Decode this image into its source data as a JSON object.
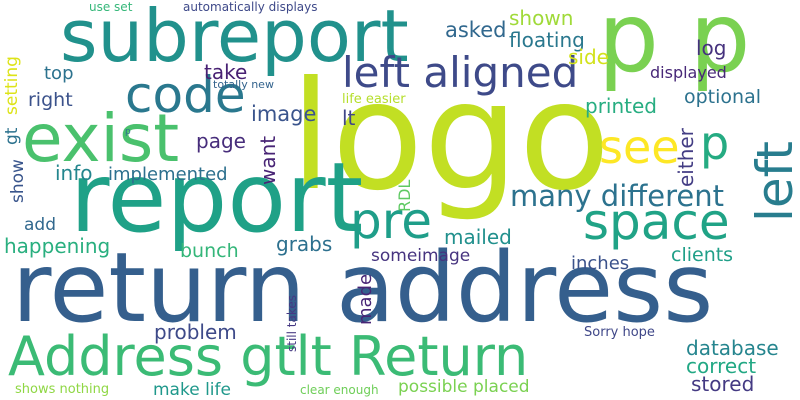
{
  "words": [
    {
      "key": "logo",
      "text": "logo",
      "color": "#c2df23"
    },
    {
      "key": "return_address",
      "text": "return address",
      "color": "#355f8d"
    },
    {
      "key": "report",
      "text": "report",
      "color": "#1fa187"
    },
    {
      "key": "subreport",
      "text": "subreport",
      "color": "#21918c"
    },
    {
      "key": "p_p",
      "text": "p p",
      "color": "#7ad151"
    },
    {
      "key": "address_gtlt_return",
      "text": "Address gtlt Return",
      "color": "#3bbb75"
    },
    {
      "key": "exist",
      "text": "exist",
      "color": "#4ac16d"
    },
    {
      "key": "left_aligned",
      "text": "left aligned",
      "color": "#3e4a89"
    },
    {
      "key": "code",
      "text": "code",
      "color": "#2a788e"
    },
    {
      "key": "space",
      "text": "space",
      "color": "#20a386"
    },
    {
      "key": "left",
      "text": "left",
      "color": "#287d8e"
    },
    {
      "key": "see",
      "text": "see",
      "color": "#fde725"
    },
    {
      "key": "p_small",
      "text": "p",
      "color": "#25ab82"
    },
    {
      "key": "pre",
      "text": "pre",
      "color": "#1f9e89"
    },
    {
      "key": "many_different",
      "text": "many different",
      "color": "#2c728e"
    },
    {
      "key": "shown",
      "text": "shown",
      "color": "#a0da39"
    },
    {
      "key": "asked",
      "text": "asked",
      "color": "#31688e"
    },
    {
      "key": "floating",
      "text": "floating",
      "color": "#2a788e"
    },
    {
      "key": "side",
      "text": "side",
      "color": "#d2e21b"
    },
    {
      "key": "log",
      "text": "log",
      "color": "#46327e"
    },
    {
      "key": "displayed",
      "text": "displayed",
      "color": "#482878"
    },
    {
      "key": "optional",
      "text": "optional",
      "color": "#2c728e"
    },
    {
      "key": "printed",
      "text": "printed",
      "color": "#27ad81"
    },
    {
      "key": "image",
      "text": "image",
      "color": "#3a548c"
    },
    {
      "key": "lt",
      "text": "lt",
      "color": "#404688"
    },
    {
      "key": "page",
      "text": "page",
      "color": "#472d7b"
    },
    {
      "key": "top",
      "text": "top",
      "color": "#2c728e"
    },
    {
      "key": "take",
      "text": "take",
      "color": "#482173"
    },
    {
      "key": "right",
      "text": "right",
      "color": "#3b528b"
    },
    {
      "key": "setting",
      "text": "setting",
      "color": "#dde318"
    },
    {
      "key": "gt",
      "text": "gt",
      "color": "#2c728e"
    },
    {
      "key": "show",
      "text": "show",
      "color": "#39558c"
    },
    {
      "key": "info",
      "text": "info",
      "color": "#24868e"
    },
    {
      "key": "implemented",
      "text": "implemented",
      "color": "#2d708e"
    },
    {
      "key": "want",
      "text": "want",
      "color": "#482475"
    },
    {
      "key": "either",
      "text": "either",
      "color": "#433d84"
    },
    {
      "key": "rdl",
      "text": "RDL",
      "color": "#5ec962"
    },
    {
      "key": "add",
      "text": "add",
      "color": "#31688e"
    },
    {
      "key": "bunch",
      "text": "bunch",
      "color": "#34b679"
    },
    {
      "key": "grabs",
      "text": "grabs",
      "color": "#2d708e"
    },
    {
      "key": "mailed",
      "text": "mailed",
      "color": "#21908d"
    },
    {
      "key": "happening",
      "text": "happening",
      "color": "#29af7f"
    },
    {
      "key": "someimage",
      "text": "someimage",
      "color": "#46337f"
    },
    {
      "key": "inches",
      "text": "inches",
      "color": "#3b528b"
    },
    {
      "key": "clients",
      "text": "clients",
      "color": "#1f9f88"
    },
    {
      "key": "problem",
      "text": "problem",
      "color": "#3e4a89"
    },
    {
      "key": "made",
      "text": "made",
      "color": "#482576"
    },
    {
      "key": "still_takes",
      "text": "still takes",
      "color": "#453882"
    },
    {
      "key": "database",
      "text": "database",
      "color": "#25858e"
    },
    {
      "key": "correct",
      "text": "correct",
      "color": "#22a884"
    },
    {
      "key": "stored",
      "text": "stored",
      "color": "#443a83"
    },
    {
      "key": "sorry_hope",
      "text": "Sorry hope",
      "color": "#3f4788"
    },
    {
      "key": "make_life",
      "text": "make life",
      "color": "#1f988b"
    },
    {
      "key": "possible_placed",
      "text": "possible placed",
      "color": "#7ad151"
    },
    {
      "key": "clear_enough",
      "text": "clear enough",
      "color": "#6ece58"
    },
    {
      "key": "shows_nothing",
      "text": "shows nothing",
      "color": "#8fd744"
    },
    {
      "key": "use_set",
      "text": "use set",
      "color": "#35b779"
    },
    {
      "key": "automatically_displays",
      "text": "automatically displays",
      "color": "#3e4989"
    },
    {
      "key": "totally_new",
      "text": "totally new",
      "color": "#33638d"
    },
    {
      "key": "life_easier",
      "text": "life easier",
      "color": "#b5de2b"
    },
    {
      "key": "p_tiny",
      "text": "p",
      "color": "#2d708e"
    }
  ]
}
